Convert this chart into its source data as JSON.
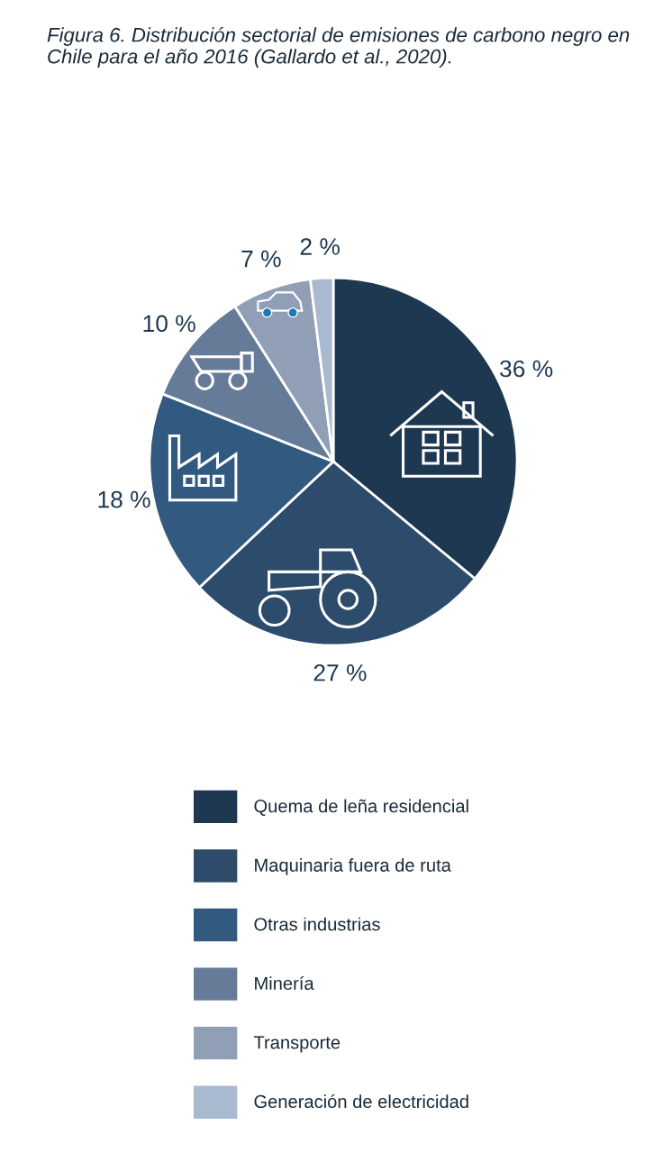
{
  "chart_data": {
    "type": "pie",
    "title": "Figura 6. Distribución sectorial de emisiones de carbono negro en Chile para el año 2016 (Gallardo et al., 2020).",
    "categories": [
      "Quema de leña residencial",
      "Maquinaria fuera de ruta",
      "Otras industrias",
      "Minería",
      "Transporte",
      "Generación de electricidad"
    ],
    "values": [
      36,
      27,
      18,
      10,
      7,
      2
    ],
    "value_labels": [
      "36 %",
      "27 %",
      "18 %",
      "10 %",
      "7 %",
      "2 %"
    ],
    "colors": [
      "#1e3851",
      "#2d4b6a",
      "#325a80",
      "#667b98",
      "#909fb5",
      "#a9b9cf"
    ],
    "legend": "bottom"
  }
}
